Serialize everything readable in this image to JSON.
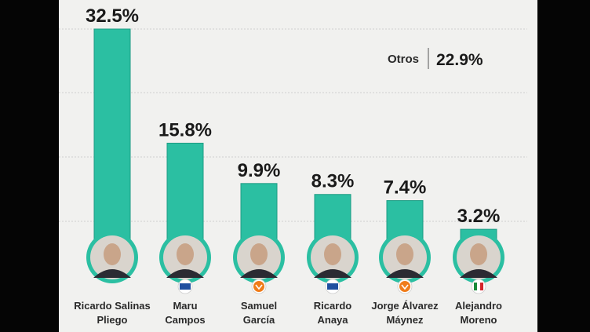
{
  "chart_data": {
    "type": "bar",
    "categories": [
      [
        "Ricardo Salinas",
        "Pliego"
      ],
      [
        "Maru",
        "Campos"
      ],
      [
        "Samuel",
        "García"
      ],
      [
        "Ricardo",
        "Anaya"
      ],
      [
        "Jorge Álvarez",
        "Máynez"
      ],
      [
        "Alejandro",
        "Moreno"
      ]
    ],
    "values": [
      32.5,
      15.8,
      9.9,
      8.3,
      7.4,
      3.2
    ],
    "value_labels": [
      "32.5%",
      "15.8%",
      "9.9%",
      "8.3%",
      "7.4%",
      "3.2%"
    ],
    "party_badges": [
      null,
      "PAN",
      "MC",
      "PAN",
      "MC",
      "PRI"
    ],
    "ylim": [
      0,
      35
    ],
    "grid": true,
    "title": "",
    "xlabel": "",
    "ylabel": ""
  },
  "otros": {
    "label": "Otros",
    "value": "22.9%"
  },
  "colors": {
    "bar": "#2bbfa2",
    "bar_edge": "#1e9c84",
    "avatar_ring": "#2bbfa2",
    "background": "#f1f1ef",
    "grid": "#cfcfcf",
    "pan": "#1f4fa0",
    "mc": "#f07c1a",
    "pri_green": "#1a8a3a",
    "pri_red": "#d4242b"
  }
}
